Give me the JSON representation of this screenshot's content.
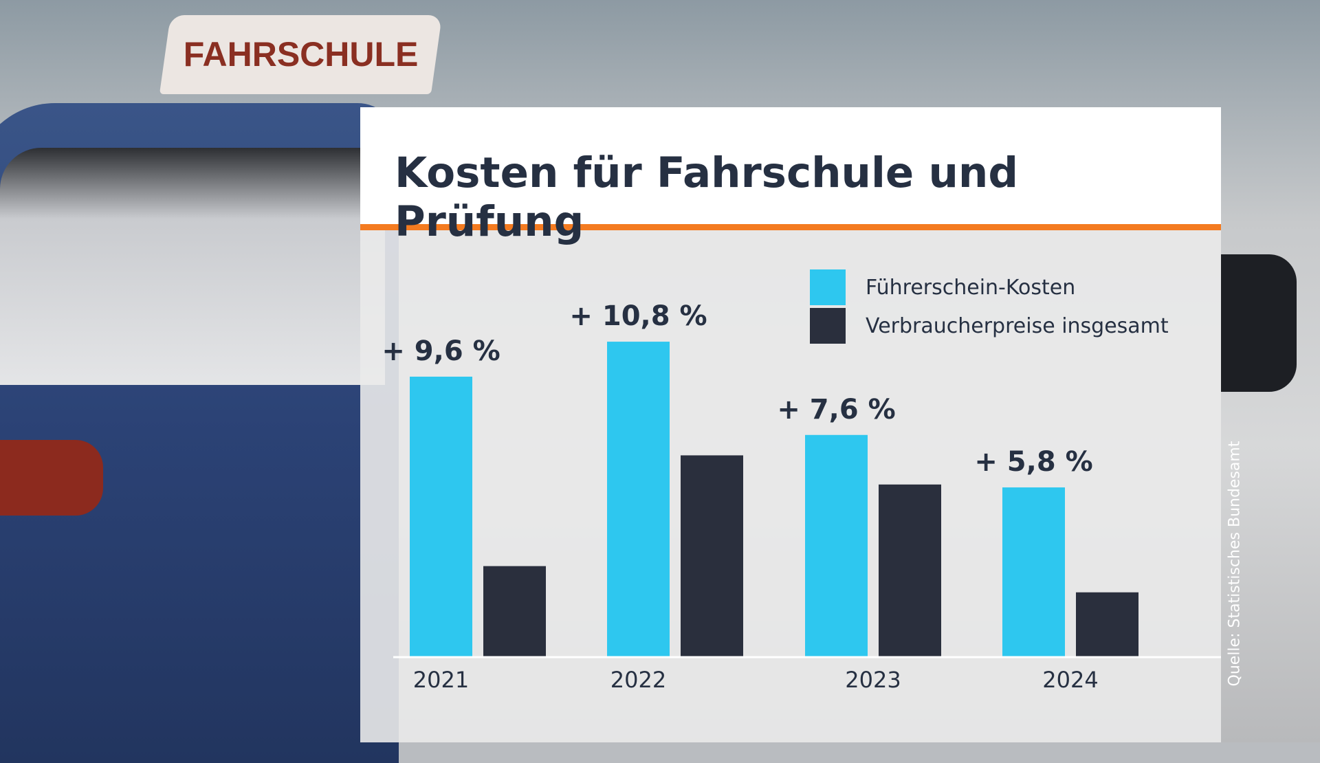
{
  "background_sign_text": "FAHRSCHULE",
  "title": "Kosten für Fahrschule und Prüfung",
  "source": "Quelle: Statistisches Bundesamt",
  "colors": {
    "accent": "#f47b20",
    "series1": "#2ec7ef",
    "series2": "#2a2f3d",
    "text": "#263042"
  },
  "chart_data": {
    "type": "bar",
    "title": "Kosten für Fahrschule und Prüfung",
    "categories": [
      "2021",
      "2022",
      "2023",
      "2024"
    ],
    "series": [
      {
        "name": "Führerschein-Kosten",
        "values": [
          9.6,
          10.8,
          7.6,
          5.8
        ],
        "labels": [
          "+ 9,6 %",
          "+ 10,8 %",
          "+ 7,6 %",
          "+ 5,8 %"
        ]
      },
      {
        "name": "Verbraucherpreise insgesamt",
        "values": [
          3.1,
          6.9,
          5.9,
          2.2
        ]
      }
    ],
    "ylim": [
      0,
      12
    ],
    "grid": false,
    "legend": "top-right"
  }
}
